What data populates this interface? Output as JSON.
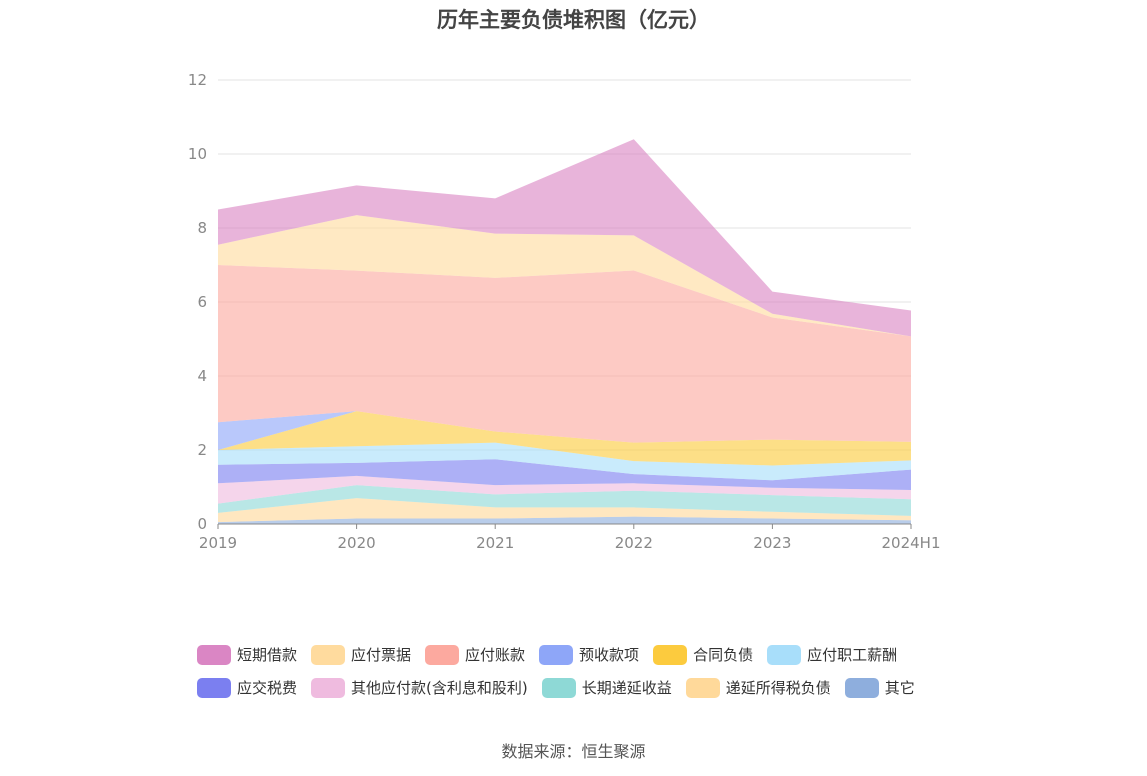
{
  "chart_data": {
    "type": "area",
    "stacked": true,
    "title": "历年主要负债堆积图（亿元）",
    "xlabel": "",
    "ylabel": "",
    "categories": [
      "2019",
      "2020",
      "2021",
      "2022",
      "2023",
      "2024H1"
    ],
    "ylim": [
      0,
      12
    ],
    "yticks": [
      0,
      2,
      4,
      6,
      8,
      10,
      12
    ],
    "grid": true,
    "legend_position": "bottom",
    "series": [
      {
        "name": "其它",
        "color": "#8eaedd",
        "values": [
          0.05,
          0.15,
          0.15,
          0.2,
          0.15,
          0.1
        ]
      },
      {
        "name": "递延所得税负债",
        "color": "#ffd99a",
        "values": [
          0.25,
          0.55,
          0.3,
          0.25,
          0.18,
          0.12
        ]
      },
      {
        "name": "长期递延收益",
        "color": "#8ed9d6",
        "values": [
          0.25,
          0.35,
          0.35,
          0.45,
          0.45,
          0.45
        ]
      },
      {
        "name": "其他应付款(含利息和股利)",
        "color": "#efbbdf",
        "values": [
          0.55,
          0.25,
          0.25,
          0.2,
          0.2,
          0.25
        ]
      },
      {
        "name": "应交税费",
        "color": "#7b7ff0",
        "values": [
          0.5,
          0.35,
          0.7,
          0.25,
          0.2,
          0.55
        ]
      },
      {
        "name": "应付职工薪酬",
        "color": "#a8defa",
        "values": [
          0.4,
          0.45,
          0.45,
          0.35,
          0.4,
          0.25
        ]
      },
      {
        "name": "合同负债",
        "color": "#fccb3e",
        "values": [
          0.0,
          0.95,
          0.3,
          0.5,
          0.7,
          0.5
        ]
      },
      {
        "name": "预收款项",
        "color": "#8ea6f8",
        "values": [
          0.75,
          0.0,
          0.0,
          0.0,
          0.0,
          0.0
        ]
      },
      {
        "name": "应付账款",
        "color": "#fca99f",
        "values": [
          4.25,
          3.8,
          4.15,
          4.65,
          3.3,
          2.85
        ]
      },
      {
        "name": "应付票据",
        "color": "#ffdb9e",
        "values": [
          0.55,
          1.5,
          1.2,
          0.95,
          0.1,
          0.0
        ]
      },
      {
        "name": "短期借款",
        "color": "#da86c4",
        "values": [
          0.95,
          0.8,
          0.95,
          2.6,
          0.6,
          0.7
        ]
      }
    ]
  },
  "legend_order": [
    [
      "短期借款",
      "应付票据",
      "应付账款",
      "预收款项",
      "合同负债",
      "应付职工薪酬"
    ],
    [
      "应交税费",
      "其他应付款(含利息和股利)",
      "长期递延收益",
      "递延所得税负债",
      "其它"
    ]
  ],
  "source_note": "数据来源：恒生聚源"
}
